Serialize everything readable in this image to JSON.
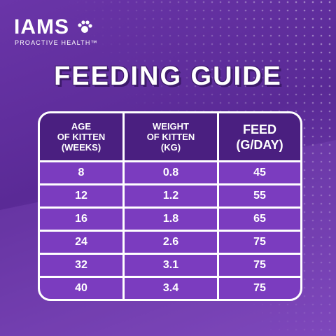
{
  "header": {
    "brand": "IAMS",
    "tagline": "PROACTIVE HEALTH™",
    "title": "FEEDING GUIDE"
  },
  "table": {
    "columns": [
      [
        "AGE",
        "OF KITTEN",
        "(WEEKS)"
      ],
      [
        "WEIGHT",
        "OF KITTEN",
        "(KG)"
      ],
      [
        "FEED",
        "(G/DAY)"
      ]
    ],
    "rows": [
      [
        8,
        0.8,
        45
      ],
      [
        12,
        1.2,
        55
      ],
      [
        16,
        1.8,
        65
      ],
      [
        24,
        2.6,
        75
      ],
      [
        32,
        3.1,
        75
      ],
      [
        40,
        3.4,
        75
      ]
    ]
  }
}
